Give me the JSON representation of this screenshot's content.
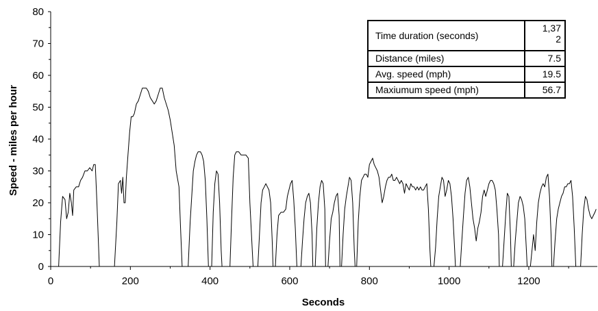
{
  "chart_data": {
    "type": "line",
    "title": "",
    "xlabel": "Seconds",
    "ylabel": "Speed - miles per hour",
    "xlim": [
      0,
      1372
    ],
    "ylim": [
      0,
      80
    ],
    "x_ticks": [
      0,
      200,
      400,
      600,
      800,
      1000,
      1200
    ],
    "y_ticks": [
      0,
      10,
      20,
      30,
      40,
      50,
      60,
      70,
      80
    ],
    "grid": false,
    "line_color": "#000000",
    "series": [
      {
        "points": [
          [
            0,
            0
          ],
          [
            20,
            0
          ],
          [
            25,
            14
          ],
          [
            30,
            22
          ],
          [
            36,
            21
          ],
          [
            40,
            15
          ],
          [
            44,
            17
          ],
          [
            48,
            23
          ],
          [
            52,
            20
          ],
          [
            55,
            16
          ],
          [
            58,
            24
          ],
          [
            64,
            25
          ],
          [
            70,
            25
          ],
          [
            75,
            27
          ],
          [
            80,
            28
          ],
          [
            86,
            30
          ],
          [
            92,
            30
          ],
          [
            98,
            31
          ],
          [
            104,
            30
          ],
          [
            108,
            32
          ],
          [
            112,
            32
          ],
          [
            116,
            20
          ],
          [
            122,
            0
          ],
          [
            160,
            0
          ],
          [
            166,
            14
          ],
          [
            170,
            26
          ],
          [
            175,
            27
          ],
          [
            178,
            23
          ],
          [
            181,
            28
          ],
          [
            184,
            20
          ],
          [
            187,
            20
          ],
          [
            190,
            28
          ],
          [
            194,
            35
          ],
          [
            198,
            42
          ],
          [
            202,
            47
          ],
          [
            206,
            47
          ],
          [
            210,
            48
          ],
          [
            215,
            51
          ],
          [
            220,
            52
          ],
          [
            225,
            54
          ],
          [
            230,
            56
          ],
          [
            235,
            56
          ],
          [
            240,
            56
          ],
          [
            245,
            55
          ],
          [
            250,
            53
          ],
          [
            255,
            52
          ],
          [
            260,
            51
          ],
          [
            265,
            52
          ],
          [
            270,
            54
          ],
          [
            275,
            56
          ],
          [
            280,
            56
          ],
          [
            285,
            53
          ],
          [
            290,
            51
          ],
          [
            295,
            49
          ],
          [
            300,
            46
          ],
          [
            305,
            42
          ],
          [
            310,
            38
          ],
          [
            315,
            30
          ],
          [
            322,
            25
          ],
          [
            326,
            12
          ],
          [
            330,
            0
          ],
          [
            345,
            0
          ],
          [
            350,
            14
          ],
          [
            354,
            22
          ],
          [
            358,
            30
          ],
          [
            362,
            33
          ],
          [
            366,
            35
          ],
          [
            370,
            36
          ],
          [
            376,
            36
          ],
          [
            380,
            35
          ],
          [
            384,
            33
          ],
          [
            388,
            27
          ],
          [
            392,
            15
          ],
          [
            396,
            0
          ],
          [
            404,
            0
          ],
          [
            408,
            17
          ],
          [
            412,
            26
          ],
          [
            416,
            30
          ],
          [
            420,
            29
          ],
          [
            424,
            20
          ],
          [
            428,
            5
          ],
          [
            430,
            0
          ],
          [
            450,
            0
          ],
          [
            454,
            15
          ],
          [
            458,
            28
          ],
          [
            462,
            35
          ],
          [
            466,
            36
          ],
          [
            472,
            36
          ],
          [
            478,
            35
          ],
          [
            484,
            35
          ],
          [
            490,
            35
          ],
          [
            496,
            34
          ],
          [
            500,
            20
          ],
          [
            506,
            5
          ],
          [
            508,
            0
          ],
          [
            520,
            0
          ],
          [
            524,
            10
          ],
          [
            528,
            20
          ],
          [
            532,
            24
          ],
          [
            536,
            25
          ],
          [
            540,
            26
          ],
          [
            544,
            25
          ],
          [
            548,
            24
          ],
          [
            552,
            20
          ],
          [
            556,
            8
          ],
          [
            558,
            0
          ],
          [
            564,
            0
          ],
          [
            568,
            10
          ],
          [
            572,
            16
          ],
          [
            578,
            17
          ],
          [
            584,
            17
          ],
          [
            590,
            18
          ],
          [
            594,
            22
          ],
          [
            598,
            24
          ],
          [
            602,
            26
          ],
          [
            606,
            27
          ],
          [
            610,
            21
          ],
          [
            614,
            12
          ],
          [
            618,
            0
          ],
          [
            628,
            0
          ],
          [
            632,
            8
          ],
          [
            636,
            15
          ],
          [
            640,
            20
          ],
          [
            644,
            22
          ],
          [
            648,
            23
          ],
          [
            652,
            20
          ],
          [
            656,
            10
          ],
          [
            658,
            0
          ],
          [
            664,
            0
          ],
          [
            668,
            12
          ],
          [
            672,
            20
          ],
          [
            676,
            25
          ],
          [
            680,
            27
          ],
          [
            684,
            26
          ],
          [
            688,
            18
          ],
          [
            690,
            0
          ],
          [
            696,
            0
          ],
          [
            700,
            8
          ],
          [
            704,
            15
          ],
          [
            708,
            17
          ],
          [
            712,
            20
          ],
          [
            716,
            22
          ],
          [
            720,
            23
          ],
          [
            724,
            16
          ],
          [
            726,
            0
          ],
          [
            730,
            0
          ],
          [
            734,
            10
          ],
          [
            738,
            18
          ],
          [
            742,
            22
          ],
          [
            746,
            25
          ],
          [
            750,
            28
          ],
          [
            754,
            27
          ],
          [
            758,
            20
          ],
          [
            762,
            5
          ],
          [
            764,
            0
          ],
          [
            768,
            0
          ],
          [
            772,
            14
          ],
          [
            776,
            22
          ],
          [
            780,
            27
          ],
          [
            784,
            28
          ],
          [
            788,
            29
          ],
          [
            792,
            29
          ],
          [
            796,
            28
          ],
          [
            800,
            32
          ],
          [
            804,
            33
          ],
          [
            808,
            34
          ],
          [
            812,
            32
          ],
          [
            816,
            31
          ],
          [
            820,
            30
          ],
          [
            824,
            28
          ],
          [
            828,
            24
          ],
          [
            832,
            20
          ],
          [
            836,
            22
          ],
          [
            840,
            25
          ],
          [
            844,
            27
          ],
          [
            848,
            28
          ],
          [
            852,
            28
          ],
          [
            856,
            29
          ],
          [
            860,
            27
          ],
          [
            864,
            27
          ],
          [
            868,
            28
          ],
          [
            872,
            27
          ],
          [
            876,
            26
          ],
          [
            880,
            27
          ],
          [
            884,
            26
          ],
          [
            888,
            23
          ],
          [
            892,
            26
          ],
          [
            896,
            25
          ],
          [
            900,
            24
          ],
          [
            904,
            26
          ],
          [
            908,
            25
          ],
          [
            912,
            25
          ],
          [
            916,
            24
          ],
          [
            920,
            25
          ],
          [
            924,
            24
          ],
          [
            928,
            25
          ],
          [
            932,
            24
          ],
          [
            936,
            24
          ],
          [
            940,
            25
          ],
          [
            944,
            26
          ],
          [
            948,
            18
          ],
          [
            952,
            5
          ],
          [
            954,
            0
          ],
          [
            962,
            0
          ],
          [
            966,
            6
          ],
          [
            970,
            15
          ],
          [
            974,
            22
          ],
          [
            978,
            25
          ],
          [
            982,
            28
          ],
          [
            986,
            27
          ],
          [
            990,
            22
          ],
          [
            994,
            24
          ],
          [
            998,
            27
          ],
          [
            1002,
            26
          ],
          [
            1006,
            22
          ],
          [
            1010,
            15
          ],
          [
            1014,
            5
          ],
          [
            1016,
            0
          ],
          [
            1028,
            0
          ],
          [
            1032,
            8
          ],
          [
            1036,
            16
          ],
          [
            1040,
            23
          ],
          [
            1044,
            27
          ],
          [
            1048,
            28
          ],
          [
            1052,
            25
          ],
          [
            1056,
            20
          ],
          [
            1060,
            15
          ],
          [
            1064,
            12
          ],
          [
            1068,
            8
          ],
          [
            1072,
            12
          ],
          [
            1076,
            14
          ],
          [
            1080,
            17
          ],
          [
            1084,
            22
          ],
          [
            1088,
            24
          ],
          [
            1092,
            22
          ],
          [
            1096,
            24
          ],
          [
            1100,
            26
          ],
          [
            1104,
            27
          ],
          [
            1108,
            27
          ],
          [
            1112,
            26
          ],
          [
            1116,
            24
          ],
          [
            1120,
            18
          ],
          [
            1124,
            10
          ],
          [
            1126,
            0
          ],
          [
            1134,
            0
          ],
          [
            1138,
            8
          ],
          [
            1142,
            16
          ],
          [
            1146,
            23
          ],
          [
            1150,
            22
          ],
          [
            1154,
            10
          ],
          [
            1156,
            0
          ],
          [
            1162,
            0
          ],
          [
            1166,
            8
          ],
          [
            1170,
            14
          ],
          [
            1174,
            20
          ],
          [
            1178,
            22
          ],
          [
            1182,
            21
          ],
          [
            1186,
            19
          ],
          [
            1190,
            15
          ],
          [
            1194,
            5
          ],
          [
            1196,
            0
          ],
          [
            1204,
            0
          ],
          [
            1208,
            5
          ],
          [
            1212,
            10
          ],
          [
            1216,
            5
          ],
          [
            1220,
            14
          ],
          [
            1224,
            20
          ],
          [
            1228,
            23
          ],
          [
            1232,
            25
          ],
          [
            1236,
            26
          ],
          [
            1240,
            25
          ],
          [
            1244,
            28
          ],
          [
            1248,
            29
          ],
          [
            1252,
            22
          ],
          [
            1256,
            10
          ],
          [
            1258,
            0
          ],
          [
            1262,
            0
          ],
          [
            1266,
            8
          ],
          [
            1270,
            15
          ],
          [
            1274,
            18
          ],
          [
            1278,
            20
          ],
          [
            1282,
            22
          ],
          [
            1286,
            23
          ],
          [
            1290,
            25
          ],
          [
            1294,
            25
          ],
          [
            1298,
            26
          ],
          [
            1302,
            26
          ],
          [
            1306,
            27
          ],
          [
            1310,
            22
          ],
          [
            1314,
            12
          ],
          [
            1318,
            0
          ],
          [
            1330,
            0
          ],
          [
            1334,
            10
          ],
          [
            1338,
            18
          ],
          [
            1342,
            22
          ],
          [
            1346,
            21
          ],
          [
            1350,
            18
          ],
          [
            1354,
            16
          ],
          [
            1358,
            15
          ],
          [
            1362,
            16
          ],
          [
            1366,
            17
          ],
          [
            1369,
            18
          ]
        ]
      }
    ]
  },
  "stats_table": {
    "rows": [
      {
        "label": "Time duration (seconds)",
        "value_line1": "1,37",
        "value_line2": "2"
      },
      {
        "label": "Distance (miles)",
        "value": "7.5"
      },
      {
        "label": "Avg. speed (mph)",
        "value": "19.5"
      },
      {
        "label": "Maxiumum speed (mph)",
        "value": "56.7"
      }
    ]
  }
}
